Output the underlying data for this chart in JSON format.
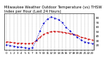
{
  "title": "Milwaukee Weather Outdoor Temperature (vs) THSW Index per Hour (Last 24 Hours)",
  "hours": [
    0,
    1,
    2,
    3,
    4,
    5,
    6,
    7,
    8,
    9,
    10,
    11,
    12,
    13,
    14,
    15,
    16,
    17,
    18,
    19,
    20,
    21,
    22,
    23
  ],
  "temp": [
    28,
    27,
    26,
    25,
    25,
    24,
    24,
    25,
    30,
    38,
    44,
    48,
    50,
    51,
    50,
    49,
    48,
    46,
    44,
    42,
    38,
    36,
    34,
    32
  ],
  "thsw": [
    22,
    20,
    18,
    17,
    16,
    15,
    14,
    15,
    32,
    52,
    68,
    78,
    82,
    80,
    76,
    70,
    60,
    52,
    44,
    38,
    32,
    28,
    26,
    24
  ],
  "temp_color": "#cc0000",
  "thsw_color": "#0000cc",
  "bg_color": "#ffffff",
  "grid_color": "#888888",
  "ylim": [
    10,
    90
  ],
  "yticks": [
    20,
    30,
    40,
    50,
    60,
    70,
    80
  ],
  "title_fontsize": 3.8,
  "tick_fontsize": 3.0
}
